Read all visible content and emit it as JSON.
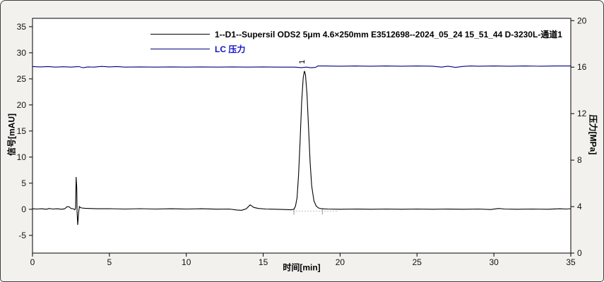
{
  "window": {
    "background": "#f2f1ee",
    "border_color": "#3f3f3f"
  },
  "legend": {
    "items": [
      {
        "label": "1--D1--Supersil ODS2 5μm 4.6×250mm E3512698--2024_05_24 15_51_44 D-3230L-通道1",
        "color": "#000000",
        "swatch_color": "#000000"
      },
      {
        "label": "LC 压力",
        "color": "#1414c8",
        "swatch_color": "#00007d"
      }
    ]
  },
  "chart_data": {
    "type": "line",
    "title": "",
    "xlabel": "时间[min]",
    "ylabel_left": "信号[mAU]",
    "ylabel_right": "压力[MPa]",
    "xlim": [
      0,
      35
    ],
    "ylim_left": [
      -8.4,
      36.6
    ],
    "ylim_right": [
      0,
      20.2
    ],
    "x_ticks": [
      0,
      5,
      10,
      15,
      20,
      25,
      30,
      35
    ],
    "left_ticks": [
      -5,
      0,
      5,
      10,
      15,
      20,
      25,
      30,
      35
    ],
    "right_ticks": [
      0,
      4,
      8,
      12,
      16,
      20
    ],
    "grid": false,
    "legend_position": "top",
    "frame_color": "#000000",
    "plot_background": "#ffffff",
    "tick_label_color": "#111111",
    "series": [
      {
        "name": "signal",
        "axis": "left",
        "color": "#000000",
        "points": [
          [
            0,
            0.1
          ],
          [
            0.3,
            0.05
          ],
          [
            0.6,
            0.1
          ],
          [
            0.9,
            0.0
          ],
          [
            1.1,
            0.15
          ],
          [
            1.3,
            0.05
          ],
          [
            1.6,
            0.1
          ],
          [
            1.9,
            0.0
          ],
          [
            2.1,
            0.1
          ],
          [
            2.25,
            0.5
          ],
          [
            2.4,
            0.45
          ],
          [
            2.5,
            0.15
          ],
          [
            2.65,
            0.1
          ],
          [
            2.75,
            -0.1
          ],
          [
            2.8,
            0.2
          ],
          [
            2.84,
            6.2
          ],
          [
            2.88,
            4.0
          ],
          [
            2.9,
            -0.5
          ],
          [
            2.94,
            -3.0
          ],
          [
            3.0,
            -0.6
          ],
          [
            3.05,
            0.5
          ],
          [
            3.1,
            0.35
          ],
          [
            3.2,
            0.25
          ],
          [
            3.4,
            0.2
          ],
          [
            3.7,
            0.15
          ],
          [
            4.2,
            0.1
          ],
          [
            5,
            0.12
          ],
          [
            6,
            0.05
          ],
          [
            7,
            0.12
          ],
          [
            8,
            0.05
          ],
          [
            9,
            0.1
          ],
          [
            10,
            0.05
          ],
          [
            11,
            0.1
          ],
          [
            12,
            0.02
          ],
          [
            12.8,
            0.05
          ],
          [
            13.3,
            -0.15
          ],
          [
            13.6,
            -0.2
          ],
          [
            13.9,
            0.1
          ],
          [
            14.15,
            0.85
          ],
          [
            14.4,
            0.35
          ],
          [
            14.7,
            0.15
          ],
          [
            15.2,
            0.05
          ],
          [
            15.8,
            0.0
          ],
          [
            16.4,
            -0.05
          ],
          [
            16.8,
            -0.1
          ],
          [
            17.0,
            0.0
          ],
          [
            17.1,
            0.6
          ],
          [
            17.2,
            2.2
          ],
          [
            17.3,
            6.5
          ],
          [
            17.4,
            13.0
          ],
          [
            17.5,
            20.5
          ],
          [
            17.6,
            25.2
          ],
          [
            17.68,
            26.5
          ],
          [
            17.75,
            25.8
          ],
          [
            17.85,
            22.0
          ],
          [
            17.95,
            15.5
          ],
          [
            18.05,
            9.0
          ],
          [
            18.15,
            4.5
          ],
          [
            18.3,
            1.6
          ],
          [
            18.45,
            0.6
          ],
          [
            18.6,
            0.25
          ],
          [
            18.8,
            0.1
          ],
          [
            19.2,
            0.05
          ],
          [
            20,
            0.0
          ],
          [
            21,
            0.05
          ],
          [
            22,
            0.0
          ],
          [
            23,
            0.05
          ],
          [
            24,
            0.0
          ],
          [
            25,
            0.05
          ],
          [
            26,
            0.0
          ],
          [
            27,
            0.05
          ],
          [
            28,
            0.0
          ],
          [
            29,
            0.05
          ],
          [
            29.8,
            -0.05
          ],
          [
            30.3,
            0.15
          ],
          [
            30.7,
            0.05
          ],
          [
            31.5,
            0.0
          ],
          [
            32.5,
            0.05
          ],
          [
            33.5,
            0.0
          ],
          [
            34.3,
            0.1
          ],
          [
            34.7,
            0.05
          ],
          [
            35,
            0.12
          ]
        ]
      },
      {
        "name": "pressure",
        "axis": "right",
        "color": "#00007d",
        "points": [
          [
            0,
            16.05
          ],
          [
            0.5,
            16.02
          ],
          [
            1,
            16.05
          ],
          [
            1.5,
            16.0
          ],
          [
            2,
            16.03
          ],
          [
            2.5,
            16.0
          ],
          [
            3,
            16.05
          ],
          [
            3.3,
            15.95
          ],
          [
            3.6,
            16.02
          ],
          [
            4,
            16.0
          ],
          [
            4.5,
            16.06
          ],
          [
            5,
            16.02
          ],
          [
            5.5,
            16.05
          ],
          [
            6,
            16.0
          ],
          [
            7,
            16.02
          ],
          [
            8,
            16.0
          ],
          [
            9,
            16.02
          ],
          [
            10,
            16.0
          ],
          [
            11,
            16.02
          ],
          [
            12,
            16.0
          ],
          [
            13,
            16.02
          ],
          [
            14,
            16.0
          ],
          [
            15,
            16.02
          ],
          [
            16,
            16.0
          ],
          [
            17,
            16.0
          ],
          [
            17.5,
            15.96
          ],
          [
            17.8,
            16.0
          ],
          [
            18.1,
            15.95
          ],
          [
            18.4,
            15.98
          ],
          [
            18.55,
            16.1
          ],
          [
            19,
            16.1
          ],
          [
            20,
            16.08
          ],
          [
            21,
            16.1
          ],
          [
            22,
            16.08
          ],
          [
            23,
            16.1
          ],
          [
            24,
            16.08
          ],
          [
            25,
            16.1
          ],
          [
            26,
            16.08
          ],
          [
            26.6,
            16.0
          ],
          [
            27,
            16.08
          ],
          [
            27.5,
            15.98
          ],
          [
            28,
            16.06
          ],
          [
            28.5,
            16.1
          ],
          [
            29,
            16.08
          ],
          [
            30,
            16.1
          ],
          [
            31,
            16.08
          ],
          [
            32,
            16.1
          ],
          [
            33,
            16.08
          ],
          [
            34,
            16.1
          ],
          [
            35,
            16.1
          ]
        ]
      }
    ],
    "peaks": [
      {
        "label": "1",
        "time": 17.68,
        "height_mAU": 26.5
      }
    ],
    "integration_baseline": {
      "axis": "left",
      "value": -0.35,
      "from": 16.95,
      "to": 19.9,
      "marker_times": [
        17.0,
        18.85
      ],
      "color": "#bdbdbd"
    }
  }
}
